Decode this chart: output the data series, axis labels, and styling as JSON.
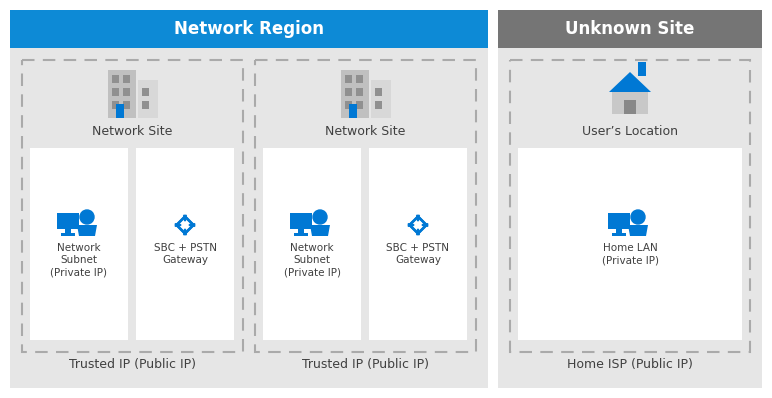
{
  "bg_color": "#ffffff",
  "network_region_color": "#0d8ad6",
  "unknown_site_color": "#757575",
  "panel_bg": "#e6e6e6",
  "white_box_bg": "#ffffff",
  "icon_blue": "#0078D4",
  "text_color": "#404040",
  "dashed_color": "#aaaaaa",
  "header_text_color": "#ffffff",
  "network_region_label": "Network Region",
  "unknown_site_label": "Unknown Site",
  "site1_label": "Network Site",
  "site2_label": "Network Site",
  "site3_label": "User’s Location",
  "subnet1_label": "Network\nSubnet\n(Private IP)",
  "gateway1_label": "SBC + PSTN\nGateway",
  "subnet2_label": "Network\nSubnet\n(Private IP)",
  "gateway2_label": "SBC + PSTN\nGateway",
  "home_lan_label": "Home LAN\n(Private IP)",
  "trusted1_label": "Trusted IP (Public IP)",
  "trusted2_label": "Trusted IP (Public IP)",
  "home_isp_label": "Home ISP (Public IP)",
  "figw": 7.72,
  "figh": 3.98,
  "dpi": 100
}
